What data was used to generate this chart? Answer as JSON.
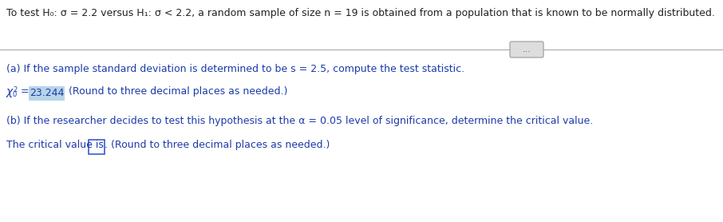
{
  "bg_color": "#ffffff",
  "title_text": "To test H₀: σ = 2.2 versus H₁: σ < 2.2, a random sample of size n = 19 is obtained from a population that is known to be normally distributed.",
  "part_a_text": "(a) If the sample standard deviation is determined to be s = 2.5, compute the test statistic.",
  "chi_value": "23.244",
  "chi_note": " (Round to three decimal places as needed.)",
  "part_b_text": "(b) If the researcher decides to test this hypothesis at the α = 0.05 level of significance, determine the critical value.",
  "critical_text_before": "The critical value is ",
  "critical_text_after": ". (Round to three decimal places as needed.)",
  "text_color": "#1c3aa9",
  "title_color": "#222222",
  "highlight_color": "#b8d4e8",
  "box_edge_color": "#3a5fcd",
  "font_size": 9.0,
  "divider_color": "#aaaaaa",
  "btn_color": "#dddddd",
  "btn_edge_color": "#999999",
  "btn_text_color": "#555555"
}
